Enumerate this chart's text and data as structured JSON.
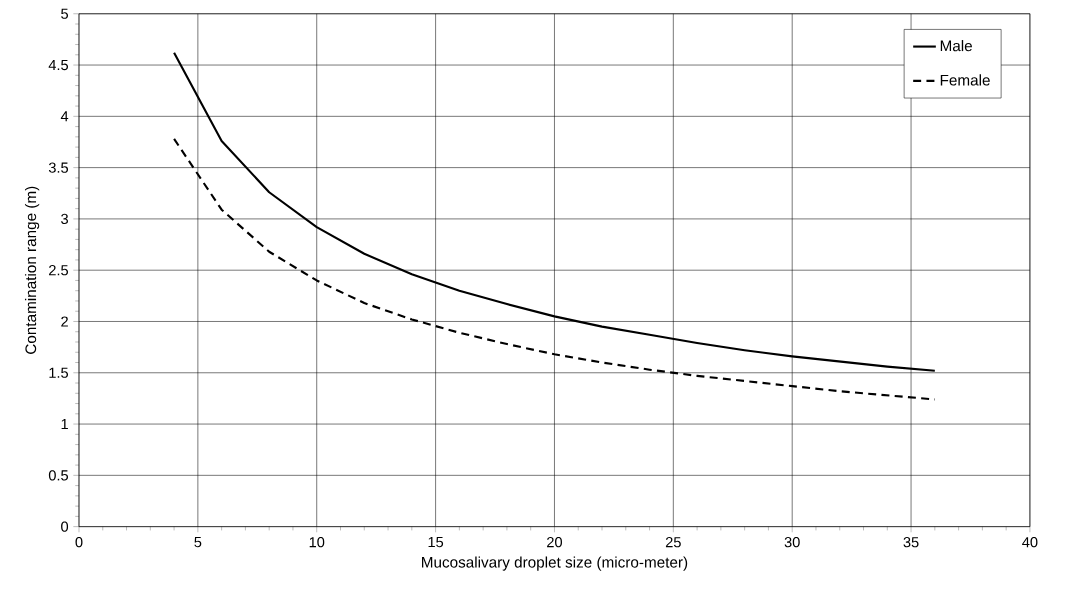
{
  "chart_data": {
    "type": "line",
    "xlabel": "Mucosalivary droplet size (micro-meter)",
    "ylabel": "Contamination range (m)",
    "x": [
      4,
      6,
      8,
      10,
      12,
      14,
      16,
      18,
      20,
      22,
      24,
      26,
      28,
      30,
      32,
      34,
      36
    ],
    "series": [
      {
        "name": "Male",
        "color": "#000000",
        "line_style": "solid",
        "values": [
          4.62,
          3.76,
          3.26,
          2.92,
          2.66,
          2.46,
          2.3,
          2.17,
          2.05,
          1.95,
          1.87,
          1.79,
          1.72,
          1.66,
          1.61,
          1.56,
          1.52
        ]
      },
      {
        "name": "Female",
        "color": "#000000",
        "line_style": "dashed",
        "values": [
          3.78,
          3.09,
          2.68,
          2.4,
          2.18,
          2.02,
          1.89,
          1.78,
          1.68,
          1.6,
          1.53,
          1.47,
          1.42,
          1.37,
          1.32,
          1.28,
          1.24
        ]
      }
    ],
    "xlim": [
      0,
      40
    ],
    "xticks": [
      0,
      5,
      10,
      15,
      20,
      25,
      30,
      35,
      40
    ],
    "ylim": [
      0,
      5
    ],
    "yticks": [
      0,
      0.5,
      1,
      1.5,
      2,
      2.5,
      3,
      3.5,
      4,
      4.5,
      5
    ],
    "grid": true,
    "legend": "top right",
    "marker": "none"
  }
}
